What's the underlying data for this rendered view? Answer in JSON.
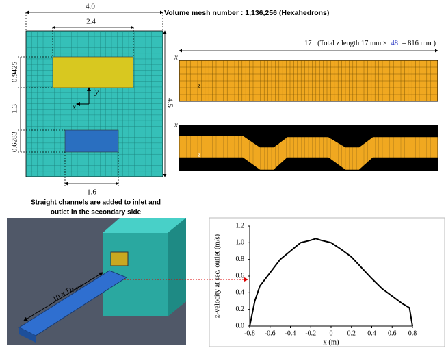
{
  "mesh_section": {
    "width_label": "4.0",
    "inner_width_label": "2.4",
    "upper_gap_label": "0.9425",
    "middle_gap_label": "1.3",
    "lower_gap_label": "0.6283",
    "height_label": "4.5",
    "bottom_width_label": "1.6",
    "x_axis_label": "x",
    "y_axis_label": "y"
  },
  "mesh_info": {
    "title": "Volume mesh number : 1,136,256 (Hexahedrons)",
    "length_label": "17",
    "length_note_start": "(Total z length 17 mm ×",
    "length_note_count": "48",
    "length_note_end": "= 816 mm )",
    "channel_x_label": "x",
    "channel_z_label": "z",
    "wavy_x_label": "x",
    "wavy_z_label": "z"
  },
  "render": {
    "caption": [
      "Straight channels are added to inlet and",
      "outlet in the secondary side"
    ],
    "length_label": "10 × D",
    "length_subscript": "h,sec"
  },
  "chart_data": {
    "type": "line",
    "x_label": "x (m)",
    "y_label": "z-velocity at sec. outlet (m/s)",
    "x": [
      -0.8,
      -0.75,
      -0.7,
      -0.6,
      -0.5,
      -0.4,
      -0.3,
      -0.2,
      -0.15,
      -0.1,
      0,
      0.1,
      0.2,
      0.3,
      0.4,
      0.5,
      0.6,
      0.7,
      0.77,
      0.8
    ],
    "series": [
      {
        "color": "#000000",
        "values": [
          0,
          0.3,
          0.48,
          0.64,
          0.8,
          0.9,
          1.0,
          1.03,
          1.05,
          1.03,
          1.0,
          0.92,
          0.83,
          0.7,
          0.57,
          0.45,
          0.36,
          0.27,
          0.22,
          0
        ]
      }
    ],
    "xlim": [
      -0.8,
      0.8
    ],
    "ylim": [
      0,
      1.2
    ],
    "xticks": [
      -0.8,
      -0.6,
      -0.4,
      -0.2,
      0,
      0.2,
      0.4,
      0.6,
      0.8
    ],
    "yticks": [
      {
        "value": 0,
        "label": "0.0"
      },
      0.2,
      0.4,
      0.6,
      0.8,
      {
        "value": 1,
        "label": "1.0"
      },
      1.2
    ]
  }
}
